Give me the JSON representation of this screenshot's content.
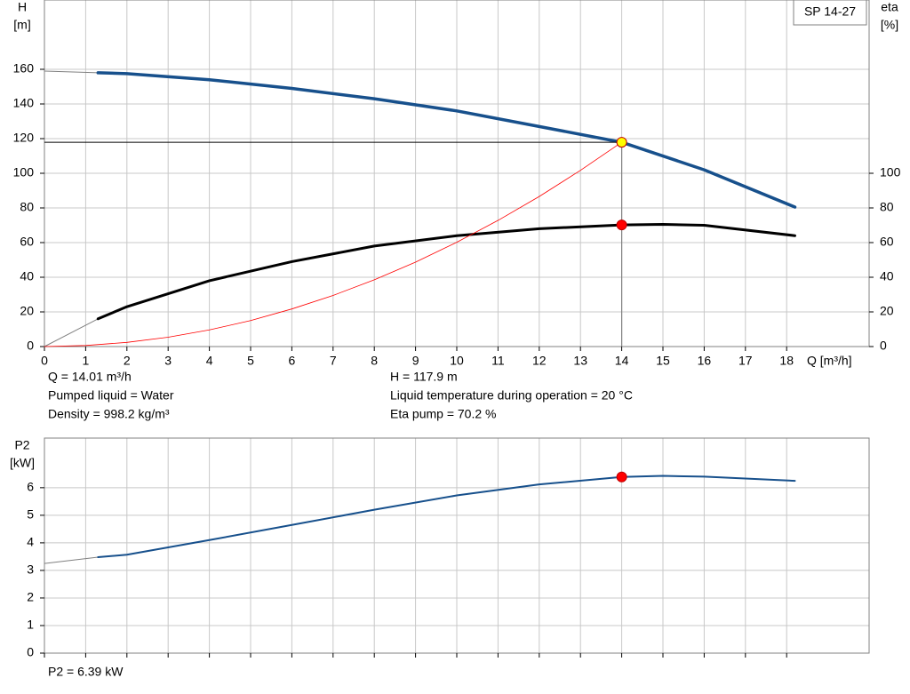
{
  "chart_data": [
    {
      "type": "line",
      "title": "SP 14-27",
      "ylabel": [
        "H",
        "[m]"
      ],
      "y2label": [
        "eta",
        "[%]"
      ],
      "xlabel": "Q [m³/h]",
      "xlim": [
        0,
        20
      ],
      "xticks": [
        0,
        1,
        2,
        3,
        4,
        5,
        6,
        7,
        8,
        9,
        10,
        11,
        12,
        13,
        14,
        15,
        16,
        17,
        18
      ],
      "ylim": [
        0,
        200
      ],
      "yticks": [
        0,
        20,
        40,
        60,
        80,
        100,
        120,
        140,
        160
      ],
      "y2lim": [
        0,
        200
      ],
      "y2ticks": [
        0,
        20,
        40,
        60,
        80,
        100
      ],
      "grid": true,
      "series": [
        {
          "color": "#808080",
          "width": 1,
          "x": [
            0,
            1.3
          ],
          "values": [
            159,
            158
          ]
        },
        {
          "color": "#17508c",
          "width": 3.5,
          "x": [
            1.3,
            2,
            4,
            6,
            8,
            10,
            12,
            14,
            16,
            18.2
          ],
          "values": [
            158,
            157.5,
            154,
            149,
            143,
            136,
            127,
            117.9,
            102,
            80.5
          ]
        },
        {
          "color": "#808080",
          "width": 1,
          "axis": "y2",
          "x": [
            0,
            1.3
          ],
          "values": [
            0,
            16
          ]
        },
        {
          "color": "#000000",
          "width": 3,
          "axis": "y2",
          "x": [
            1.3,
            2,
            4,
            6,
            8,
            10,
            12,
            14,
            15,
            16,
            18.2
          ],
          "values": [
            16,
            23,
            38,
            49,
            58,
            64,
            68,
            70.2,
            70.5,
            70,
            64
          ]
        },
        {
          "color": "#ff0000",
          "width": 0.8,
          "x": [
            0,
            1,
            2,
            3,
            4,
            5,
            6,
            7,
            8,
            9,
            10,
            11,
            12,
            13,
            14
          ],
          "values": [
            0,
            0.6,
            2.4,
            5.4,
            9.6,
            15,
            21.7,
            29.5,
            38.5,
            48.7,
            60.2,
            72.8,
            86.6,
            101.7,
            117.9
          ]
        },
        {
          "type": "point",
          "color": "#ffff00",
          "x": [
            14
          ],
          "values": [
            117.9
          ],
          "guides": true
        },
        {
          "type": "point",
          "color": "#ff0000",
          "axis": "y2",
          "x": [
            14
          ],
          "values": [
            70.2
          ]
        }
      ],
      "annotations": [
        [
          "Q = 14.01 m³/h",
          "Pumped liquid = Water",
          "Density = 998.2 kg/m³"
        ],
        [
          "H = 117.9 m",
          "Liquid temperature during operation = 20 °C",
          "Eta pump = 70.2 %"
        ]
      ]
    },
    {
      "type": "line",
      "ylabel": [
        "P2",
        "[kW]"
      ],
      "xlim": [
        0,
        20
      ],
      "xticks": [
        0,
        1,
        2,
        3,
        4,
        5,
        6,
        7,
        8,
        9,
        10,
        11,
        12,
        13,
        14,
        15,
        16,
        17,
        18
      ],
      "ylim": [
        0,
        7.8
      ],
      "yticks": [
        0,
        1,
        2,
        3,
        4,
        5,
        6
      ],
      "grid": true,
      "series": [
        {
          "color": "#808080",
          "width": 1,
          "x": [
            0,
            1.3
          ],
          "values": [
            3.25,
            3.48
          ]
        },
        {
          "color": "#17508c",
          "width": 2,
          "x": [
            1.3,
            2,
            4,
            6,
            8,
            10,
            12,
            14,
            15,
            16,
            18.2
          ],
          "values": [
            3.48,
            3.57,
            4.1,
            4.65,
            5.2,
            5.72,
            6.12,
            6.39,
            6.43,
            6.4,
            6.25
          ]
        },
        {
          "type": "point",
          "color": "#ff0000",
          "x": [
            14
          ],
          "values": [
            6.39
          ]
        }
      ],
      "annotations": [
        [
          "P2 = 6.39 kW"
        ]
      ]
    }
  ]
}
